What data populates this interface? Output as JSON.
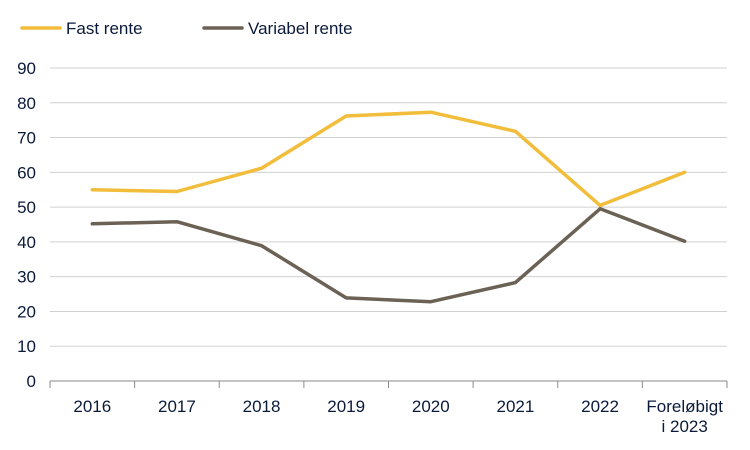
{
  "chart_data": {
    "type": "line",
    "categories": [
      "2016",
      "2017",
      "2018",
      "2019",
      "2020",
      "2021",
      "2022",
      "Foreløbigt\ni 2023"
    ],
    "series": [
      {
        "name": "Fast rente",
        "color": "#f2bd3a",
        "values": [
          55.0,
          54.5,
          61.2,
          76.2,
          77.3,
          71.8,
          50.5,
          60.0
        ]
      },
      {
        "name": "Variabel rente",
        "color": "#6b6154",
        "values": [
          45.2,
          45.8,
          38.9,
          23.9,
          22.8,
          28.3,
          49.5,
          40.2
        ]
      }
    ],
    "ylim": [
      0,
      90
    ],
    "yticks": [
      0,
      10,
      20,
      30,
      40,
      50,
      60,
      70,
      80,
      90
    ],
    "grid": true,
    "legend_position": "top-left",
    "title": "",
    "xlabel": "",
    "ylabel": ""
  }
}
